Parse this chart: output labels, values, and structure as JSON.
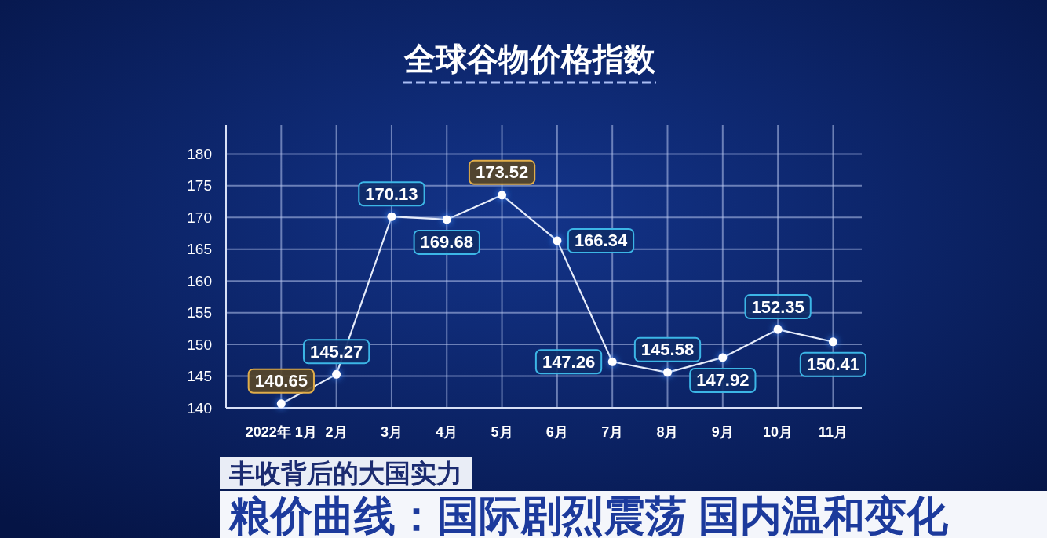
{
  "chart_data": {
    "type": "line",
    "title": "全球谷物价格指数",
    "categories": [
      "2022年 1月",
      "2月",
      "3月",
      "4月",
      "5月",
      "6月",
      "7月",
      "8月",
      "9月",
      "10月",
      "11月"
    ],
    "series": [
      {
        "color": "#e6ecfa",
        "values": [
          140.65,
          145.27,
          170.13,
          169.68,
          173.52,
          166.34,
          147.26,
          145.58,
          147.92,
          152.35,
          150.41
        ]
      }
    ],
    "ylim": [
      140,
      184.5
    ],
    "yticks": [
      140,
      145,
      150,
      155,
      160,
      165,
      170,
      175,
      180
    ],
    "grid": true,
    "marker": "circle",
    "line_style": "solid",
    "data_labels": true,
    "annotations": [
      "丰收背后的大国实力",
      "粮价曲线：国际剧烈震荡 国内温和变化"
    ]
  }
}
